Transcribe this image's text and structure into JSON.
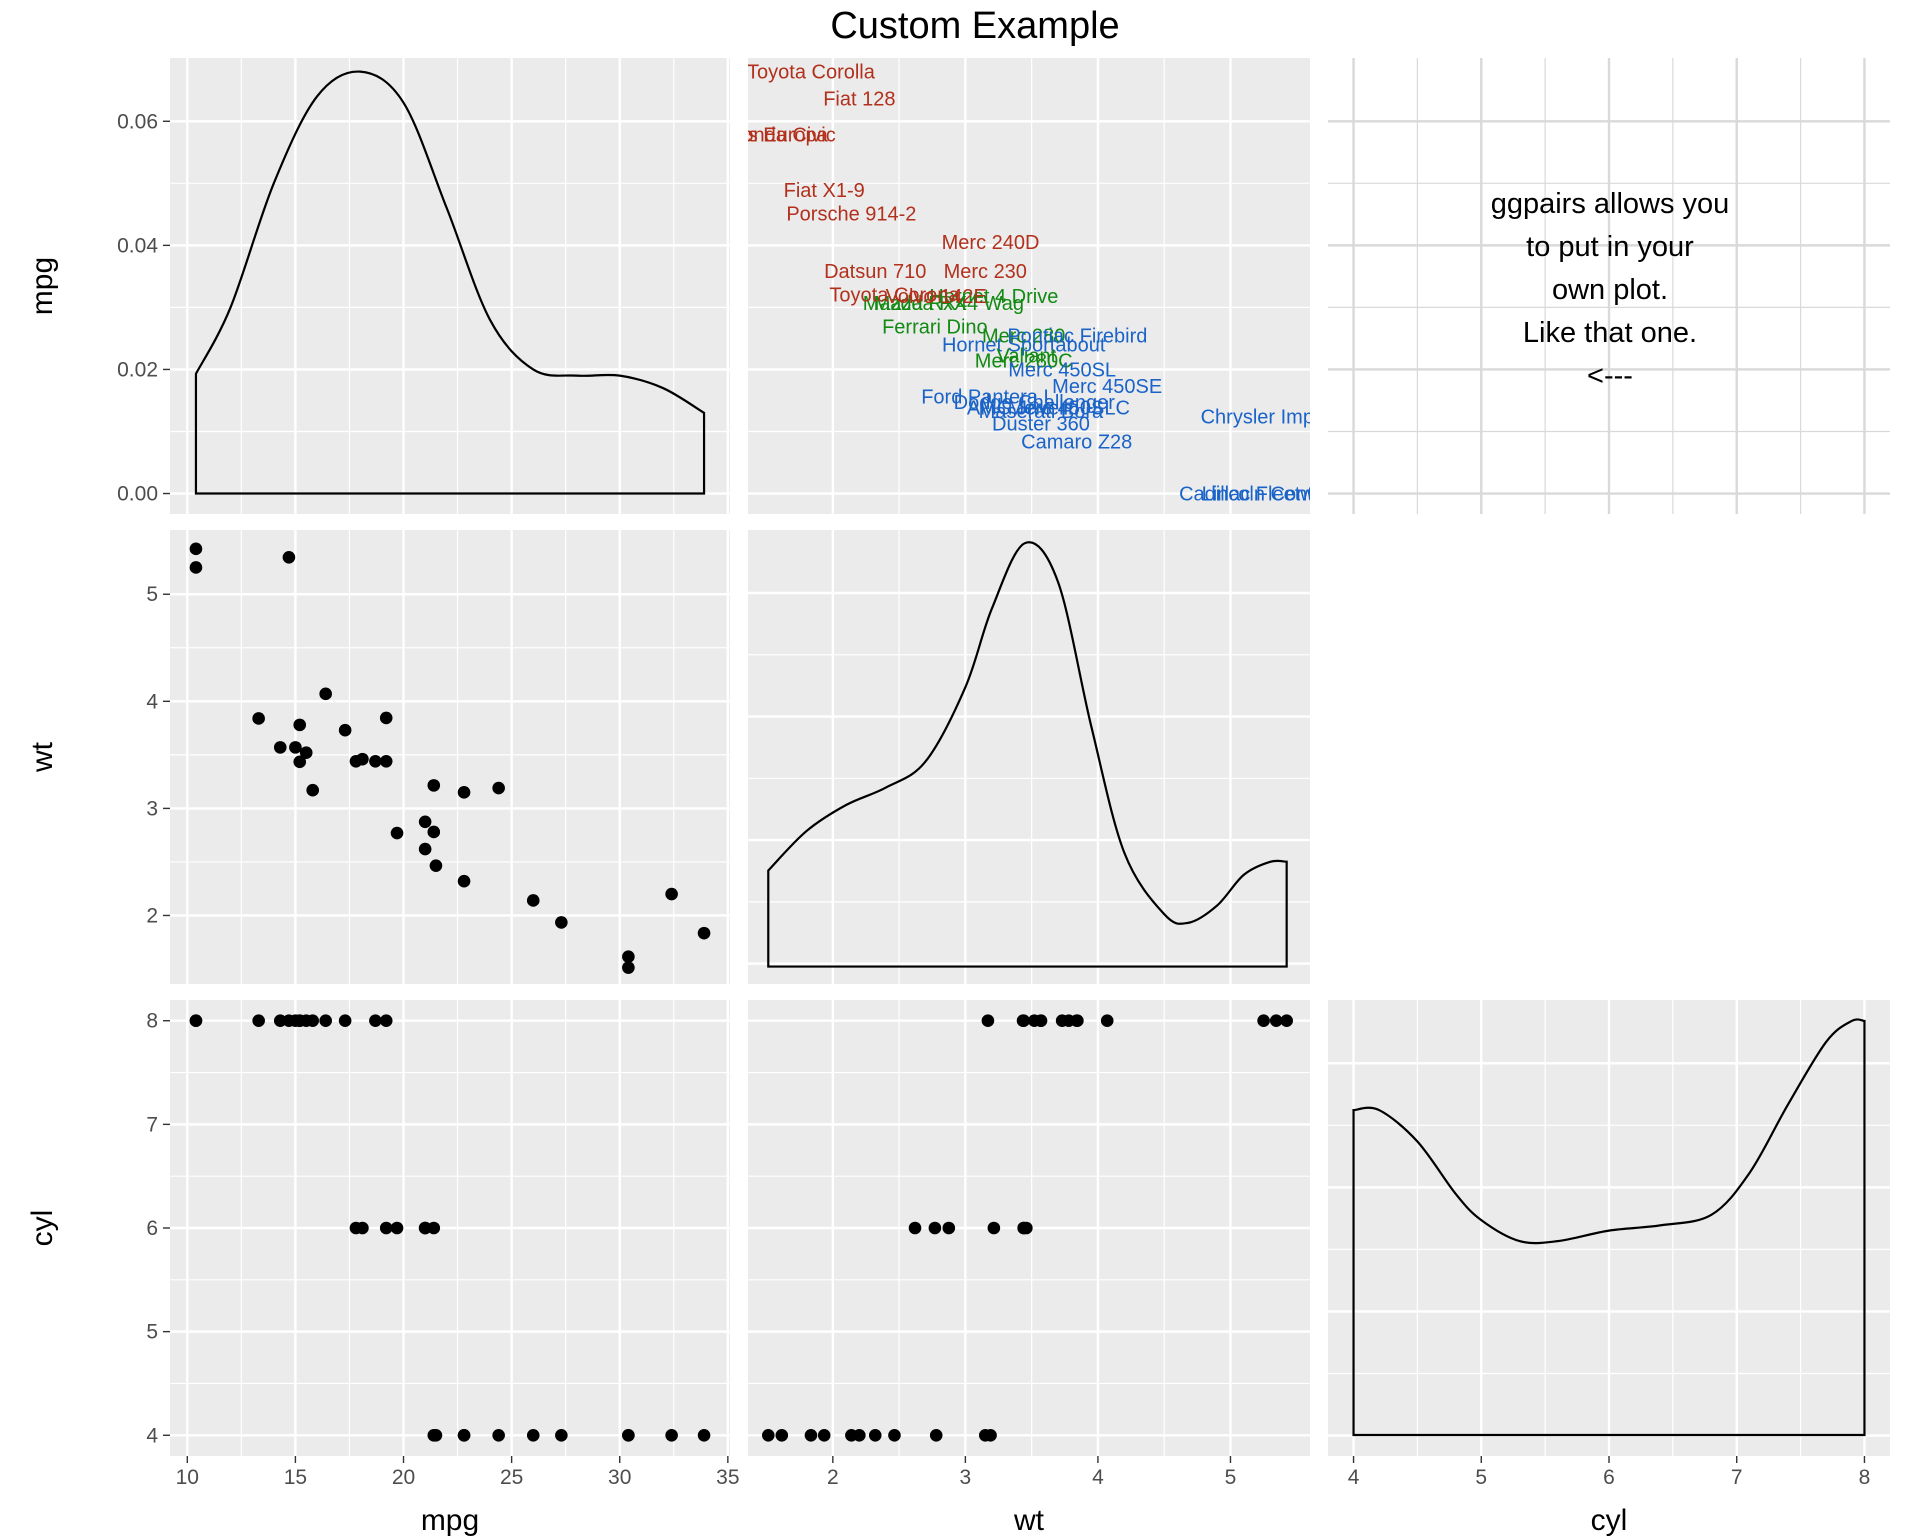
{
  "title": "Custom Example",
  "note": {
    "lines": [
      "ggpairs allows you",
      "to put in your",
      "own plot.",
      "Like that one.",
      "<---"
    ]
  },
  "colors": {
    "panel_bg": "#ebebeb",
    "grid": "#ffffff",
    "point": "#000000",
    "cyl4": "#b2301c",
    "cyl6": "#138a13",
    "cyl8": "#1a63c8"
  },
  "chart_data": {
    "type": "scatter",
    "title": "Custom Example",
    "variables": [
      "mpg",
      "wt",
      "cyl"
    ],
    "axes": {
      "mpg": {
        "label": "mpg",
        "range": [
          9.2,
          35.1
        ],
        "ticks": [
          10,
          15,
          20,
          25,
          30,
          35
        ]
      },
      "wt": {
        "label": "wt",
        "range": [
          1.36,
          5.6
        ],
        "ticks": [
          2,
          3,
          4,
          5
        ]
      },
      "cyl": {
        "label": "cyl",
        "range": [
          3.8,
          8.2
        ],
        "ticks": [
          4,
          5,
          6,
          7,
          8
        ]
      },
      "density": {
        "range": [
          -0.0033,
          0.0702
        ],
        "ticks": [
          "0.00",
          "0.02",
          "0.04",
          "0.06"
        ]
      }
    },
    "cars": [
      {
        "name": "Mazda RX4",
        "mpg": 21.0,
        "wt": 2.62,
        "cyl": 6
      },
      {
        "name": "Mazda RX4 Wag",
        "mpg": 21.0,
        "wt": 2.875,
        "cyl": 6
      },
      {
        "name": "Datsun 710",
        "mpg": 22.8,
        "wt": 2.32,
        "cyl": 4
      },
      {
        "name": "Hornet 4 Drive",
        "mpg": 21.4,
        "wt": 3.215,
        "cyl": 6
      },
      {
        "name": "Hornet Sportabout",
        "mpg": 18.7,
        "wt": 3.44,
        "cyl": 8
      },
      {
        "name": "Valiant",
        "mpg": 18.1,
        "wt": 3.46,
        "cyl": 6
      },
      {
        "name": "Duster 360",
        "mpg": 14.3,
        "wt": 3.57,
        "cyl": 8
      },
      {
        "name": "Merc 240D",
        "mpg": 24.4,
        "wt": 3.19,
        "cyl": 4
      },
      {
        "name": "Merc 230",
        "mpg": 22.8,
        "wt": 3.15,
        "cyl": 4
      },
      {
        "name": "Merc 280",
        "mpg": 19.2,
        "wt": 3.44,
        "cyl": 6
      },
      {
        "name": "Merc 280C",
        "mpg": 17.8,
        "wt": 3.44,
        "cyl": 6
      },
      {
        "name": "Merc 450SE",
        "mpg": 16.4,
        "wt": 4.07,
        "cyl": 8
      },
      {
        "name": "Merc 450SL",
        "mpg": 17.3,
        "wt": 3.73,
        "cyl": 8
      },
      {
        "name": "Merc 450SLC",
        "mpg": 15.2,
        "wt": 3.78,
        "cyl": 8
      },
      {
        "name": "Cadillac Fleetwood",
        "mpg": 10.4,
        "wt": 5.25,
        "cyl": 8
      },
      {
        "name": "Lincoln Continental",
        "mpg": 10.4,
        "wt": 5.424,
        "cyl": 8
      },
      {
        "name": "Chrysler Imperial",
        "mpg": 14.7,
        "wt": 5.345,
        "cyl": 8
      },
      {
        "name": "Fiat 128",
        "mpg": 32.4,
        "wt": 2.2,
        "cyl": 4
      },
      {
        "name": "Honda Civic",
        "mpg": 30.4,
        "wt": 1.615,
        "cyl": 4
      },
      {
        "name": "Toyota Corolla",
        "mpg": 33.9,
        "wt": 1.835,
        "cyl": 4
      },
      {
        "name": "Toyota Corona",
        "mpg": 21.5,
        "wt": 2.465,
        "cyl": 4
      },
      {
        "name": "Dodge Challenger",
        "mpg": 15.5,
        "wt": 3.52,
        "cyl": 8
      },
      {
        "name": "AMC Javelin",
        "mpg": 15.2,
        "wt": 3.435,
        "cyl": 8
      },
      {
        "name": "Camaro Z28",
        "mpg": 13.3,
        "wt": 3.84,
        "cyl": 8
      },
      {
        "name": "Pontiac Firebird",
        "mpg": 19.2,
        "wt": 3.845,
        "cyl": 8
      },
      {
        "name": "Fiat X1-9",
        "mpg": 27.3,
        "wt": 1.935,
        "cyl": 4
      },
      {
        "name": "Porsche 914-2",
        "mpg": 26.0,
        "wt": 2.14,
        "cyl": 4
      },
      {
        "name": "Lotus Europa",
        "mpg": 30.4,
        "wt": 1.513,
        "cyl": 4
      },
      {
        "name": "Ford Pantera L",
        "mpg": 15.8,
        "wt": 3.17,
        "cyl": 8
      },
      {
        "name": "Ferrari Dino",
        "mpg": 19.7,
        "wt": 2.77,
        "cyl": 6
      },
      {
        "name": "Maserati Bora",
        "mpg": 15.0,
        "wt": 3.57,
        "cyl": 8
      },
      {
        "name": "Volvo 142E",
        "mpg": 21.4,
        "wt": 2.78,
        "cyl": 4
      }
    ],
    "densities": {
      "mpg": {
        "x": [
          10.4,
          12,
          14,
          16,
          18,
          20,
          22,
          24,
          26,
          28,
          30,
          32,
          33.9
        ],
        "y": [
          0.0193,
          0.03,
          0.05,
          0.064,
          0.068,
          0.063,
          0.046,
          0.028,
          0.02,
          0.019,
          0.019,
          0.017,
          0.013
        ]
      },
      "wt": {
        "x": [
          1.513,
          1.8,
          2.1,
          2.4,
          2.7,
          3.0,
          3.2,
          3.45,
          3.7,
          3.95,
          4.2,
          4.5,
          4.68,
          4.9,
          5.1,
          5.3,
          5.424
        ],
        "y": [
          0.22,
          0.31,
          0.37,
          0.41,
          0.47,
          0.64,
          0.82,
          0.97,
          0.88,
          0.55,
          0.26,
          0.12,
          0.1,
          0.14,
          0.21,
          0.24,
          0.24
        ]
      },
      "cyl": {
        "x": [
          4,
          4.2,
          4.5,
          4.8,
          5.0,
          5.3,
          5.6,
          6.0,
          6.4,
          6.8,
          7.1,
          7.4,
          7.7,
          7.9,
          8
        ],
        "y": [
          0.62,
          0.62,
          0.56,
          0.46,
          0.41,
          0.37,
          0.37,
          0.39,
          0.4,
          0.42,
          0.5,
          0.63,
          0.75,
          0.79,
          0.79
        ]
      }
    }
  }
}
